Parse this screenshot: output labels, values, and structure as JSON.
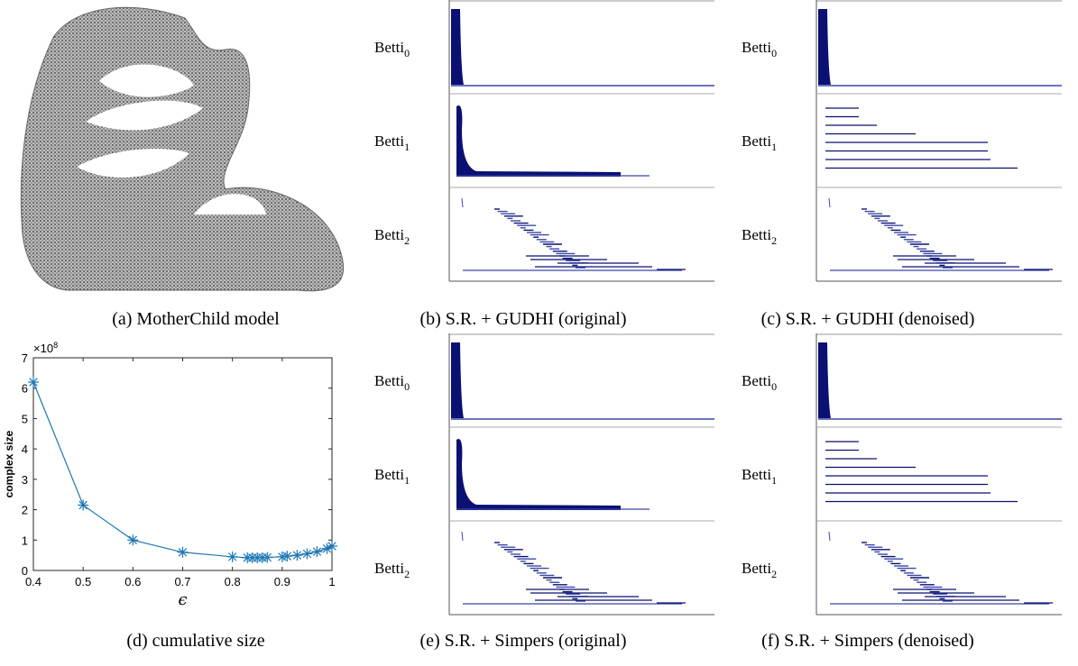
{
  "figure_a": {
    "caption": "(a) MotherChild model"
  },
  "chart_data": {
    "type": "line",
    "caption": "(d) cumulative size",
    "x_label": "ϵ",
    "y_label": "complex size",
    "y_exponent": {
      "base": "×10",
      "power": "8"
    },
    "x": [
      0.4,
      0.5,
      0.6,
      0.7,
      0.8,
      0.83,
      0.84,
      0.85,
      0.86,
      0.87,
      0.9,
      0.91,
      0.93,
      0.95,
      0.97,
      0.99,
      1.0
    ],
    "series": [
      {
        "name": "complex size",
        "color": "#1f77b4",
        "values": [
          6.2,
          2.15,
          1.0,
          0.6,
          0.45,
          0.42,
          0.42,
          0.42,
          0.42,
          0.43,
          0.45,
          0.47,
          0.5,
          0.55,
          0.62,
          0.72,
          0.8
        ]
      }
    ],
    "xlim": [
      0.4,
      1
    ],
    "xticks": [
      0.4,
      0.5,
      0.6,
      0.7,
      0.8,
      0.9,
      1
    ],
    "ylim": [
      0,
      7
    ],
    "yticks": [
      0,
      1,
      2,
      3,
      4,
      5,
      6,
      7
    ]
  },
  "barcodes": [
    {
      "caption": "(b) S.R. + GUDHI (original)",
      "rows": [
        {
          "text": "Betti",
          "sub": "0"
        },
        {
          "text": "Betti",
          "sub": "1"
        },
        {
          "text": "Betti",
          "sub": "2"
        }
      ]
    },
    {
      "caption": "(c) S.R. + GUDHI (denoised)",
      "rows": [
        {
          "text": "Betti",
          "sub": "0"
        },
        {
          "text": "Betti",
          "sub": "1"
        },
        {
          "text": "Betti",
          "sub": "2"
        }
      ]
    },
    {
      "caption": "(e) S.R. + Simpers (original)",
      "rows": [
        {
          "text": "Betti",
          "sub": "0"
        },
        {
          "text": "Betti",
          "sub": "1"
        },
        {
          "text": "Betti",
          "sub": "2"
        }
      ]
    },
    {
      "caption": "(f) S.R. + Simpers (denoised)",
      "rows": [
        {
          "text": "Betti",
          "sub": "0"
        },
        {
          "text": "Betti",
          "sub": "1"
        },
        {
          "text": "Betti",
          "sub": "2"
        }
      ]
    }
  ]
}
